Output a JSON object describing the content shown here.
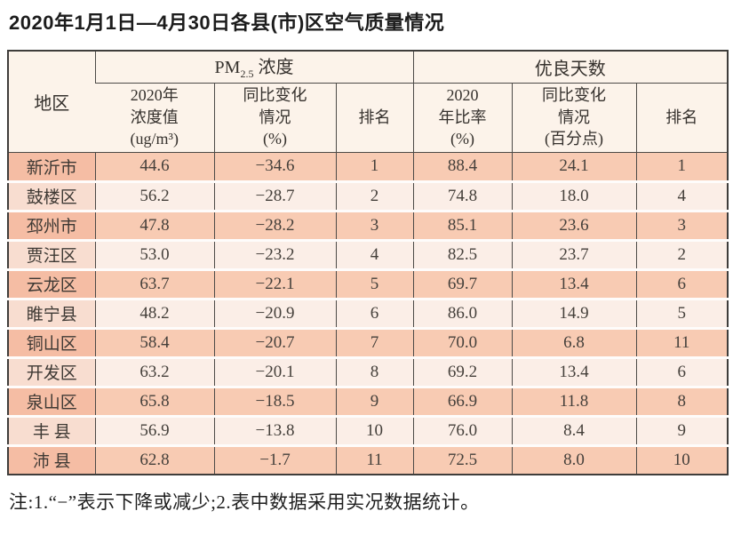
{
  "title": "2020年1月1日—4月30日各县(市)区空气质量情况",
  "footnote": "注:1.“−”表示下降或减少;2.表中数据采用实况数据统计。",
  "table": {
    "header": {
      "region": "地区",
      "pm_group": {
        "base": "PM",
        "sub": "2.5",
        "rest": " 浓度"
      },
      "good_group": "优良天数",
      "pm_value": {
        "l1": "2020年",
        "l2": "浓度值",
        "l3": "(ug/m³)"
      },
      "pm_change": {
        "l1": "同比变化",
        "l2": "情况",
        "l3": "(%)"
      },
      "pm_rank": "排名",
      "good_ratio": {
        "l1": "2020",
        "l2": "年比率",
        "l3": "(%)"
      },
      "good_change": {
        "l1": "同比变化",
        "l2": "情况",
        "l3": "(百分点)"
      },
      "good_rank": "排名"
    },
    "rows": [
      {
        "region": "新沂市",
        "pm_value": "44.6",
        "pm_change": "−34.6",
        "pm_rank": "1",
        "good_ratio": "88.4",
        "good_change": "24.1",
        "good_rank": "1"
      },
      {
        "region": "鼓楼区",
        "pm_value": "56.2",
        "pm_change": "−28.7",
        "pm_rank": "2",
        "good_ratio": "74.8",
        "good_change": "18.0",
        "good_rank": "4"
      },
      {
        "region": "邳州市",
        "pm_value": "47.8",
        "pm_change": "−28.2",
        "pm_rank": "3",
        "good_ratio": "85.1",
        "good_change": "23.6",
        "good_rank": "3"
      },
      {
        "region": "贾汪区",
        "pm_value": "53.0",
        "pm_change": "−23.2",
        "pm_rank": "4",
        "good_ratio": "82.5",
        "good_change": "23.7",
        "good_rank": "2"
      },
      {
        "region": "云龙区",
        "pm_value": "63.7",
        "pm_change": "−22.1",
        "pm_rank": "5",
        "good_ratio": "69.7",
        "good_change": "13.4",
        "good_rank": "6"
      },
      {
        "region": "睢宁县",
        "pm_value": "48.2",
        "pm_change": "−20.9",
        "pm_rank": "6",
        "good_ratio": "86.0",
        "good_change": "14.9",
        "good_rank": "5"
      },
      {
        "region": "铜山区",
        "pm_value": "58.4",
        "pm_change": "−20.7",
        "pm_rank": "7",
        "good_ratio": "70.0",
        "good_change": "6.8",
        "good_rank": "11"
      },
      {
        "region": "开发区",
        "pm_value": "63.2",
        "pm_change": "−20.1",
        "pm_rank": "8",
        "good_ratio": "69.2",
        "good_change": "13.4",
        "good_rank": "6"
      },
      {
        "region": "泉山区",
        "pm_value": "65.8",
        "pm_change": "−18.5",
        "pm_rank": "9",
        "good_ratio": "66.9",
        "good_change": "11.8",
        "good_rank": "8"
      },
      {
        "region": "丰 县",
        "pm_value": "56.9",
        "pm_change": "−13.8",
        "pm_rank": "10",
        "good_ratio": "76.0",
        "good_change": "8.4",
        "good_rank": "9"
      },
      {
        "region": "沛 县",
        "pm_value": "62.8",
        "pm_change": "−1.7",
        "pm_rank": "11",
        "good_ratio": "72.5",
        "good_change": "8.0",
        "good_rank": "10"
      }
    ]
  }
}
